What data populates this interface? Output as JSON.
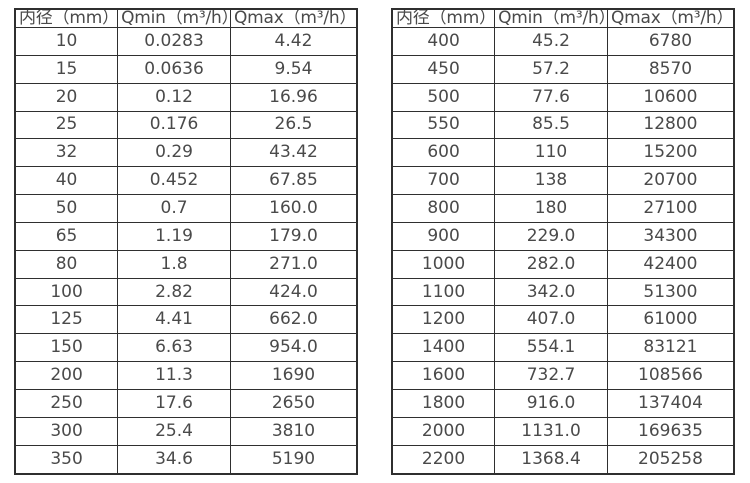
{
  "page": {
    "background": "#ffffff",
    "border_color": "#2f2f2f",
    "text_color": "#4a4a4a"
  },
  "tables": [
    {
      "name": "flow-spec-table-small-diameters",
      "headers": [
        "内径（mm）",
        "Qmin（m³/h）",
        "Qmax（m³/h）"
      ],
      "rows": [
        [
          "10",
          "0.0283",
          "4.42"
        ],
        [
          "15",
          "0.0636",
          "9.54"
        ],
        [
          "20",
          "0.12",
          "16.96"
        ],
        [
          "25",
          "0.176",
          "26.5"
        ],
        [
          "32",
          "0.29",
          "43.42"
        ],
        [
          "40",
          "0.452",
          "67.85"
        ],
        [
          "50",
          "0.7",
          "160.0"
        ],
        [
          "65",
          "1.19",
          "179.0"
        ],
        [
          "80",
          "1.8",
          "271.0"
        ],
        [
          "100",
          "2.82",
          "424.0"
        ],
        [
          "125",
          "4.41",
          "662.0"
        ],
        [
          "150",
          "6.63",
          "954.0"
        ],
        [
          "200",
          "11.3",
          "1690"
        ],
        [
          "250",
          "17.6",
          "2650"
        ],
        [
          "300",
          "25.4",
          "3810"
        ],
        [
          "350",
          "34.6",
          "5190"
        ]
      ]
    },
    {
      "name": "flow-spec-table-large-diameters",
      "headers": [
        "内径（mm）",
        "Qmin（m³/h）",
        "Qmax（m³/h）"
      ],
      "rows": [
        [
          "400",
          "45.2",
          "6780"
        ],
        [
          "450",
          "57.2",
          "8570"
        ],
        [
          "500",
          "77.6",
          "10600"
        ],
        [
          "550",
          "85.5",
          "12800"
        ],
        [
          "600",
          "110",
          "15200"
        ],
        [
          "700",
          "138",
          "20700"
        ],
        [
          "800",
          "180",
          "27100"
        ],
        [
          "900",
          "229.0",
          "34300"
        ],
        [
          "1000",
          "282.0",
          "42400"
        ],
        [
          "1100",
          "342.0",
          "51300"
        ],
        [
          "1200",
          "407.0",
          "61000"
        ],
        [
          "1400",
          "554.1",
          "83121"
        ],
        [
          "1600",
          "732.7",
          "108566"
        ],
        [
          "1800",
          "916.0",
          "137404"
        ],
        [
          "2000",
          "1131.0",
          "169635"
        ],
        [
          "2200",
          "1368.4",
          "205258"
        ]
      ]
    }
  ]
}
